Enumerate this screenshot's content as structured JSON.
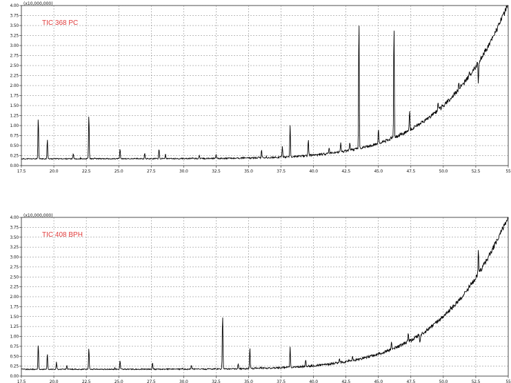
{
  "chart_data": [
    {
      "type": "line",
      "label": "TIC 368 PC",
      "multiplier": "(x10,000,000)",
      "xlim": [
        17.5,
        55.0
      ],
      "ylim": [
        0,
        4.0
      ],
      "x_ticks": [
        "17.5",
        "20.0",
        "22.5",
        "25.0",
        "27.5",
        "30.0",
        "32.5",
        "35.0",
        "37.5",
        "40.0",
        "42.5",
        "45.0",
        "47.5",
        "50.0",
        "52.5",
        "55"
      ],
      "y_ticks": [
        "0.00",
        "0.25",
        "0.50",
        "0.75",
        "1.00",
        "1.25",
        "1.50",
        "1.75",
        "2.00",
        "2.25",
        "2.50",
        "2.75",
        "3.00",
        "3.25",
        "3.50",
        "3.75",
        "4.00"
      ],
      "grid": true,
      "peaks": [
        {
          "x": 18.8,
          "y": 1.22
        },
        {
          "x": 19.5,
          "y": 0.68
        },
        {
          "x": 21.5,
          "y": 0.3
        },
        {
          "x": 22.7,
          "y": 1.32
        },
        {
          "x": 25.1,
          "y": 0.42
        },
        {
          "x": 27.0,
          "y": 0.32
        },
        {
          "x": 28.1,
          "y": 0.42
        },
        {
          "x": 28.6,
          "y": 0.28
        },
        {
          "x": 31.2,
          "y": 0.25
        },
        {
          "x": 32.5,
          "y": 0.27
        },
        {
          "x": 36.0,
          "y": 0.4
        },
        {
          "x": 37.6,
          "y": 0.5
        },
        {
          "x": 38.2,
          "y": 1.02
        },
        {
          "x": 39.6,
          "y": 0.68
        },
        {
          "x": 41.2,
          "y": 0.45
        },
        {
          "x": 42.1,
          "y": 0.55
        },
        {
          "x": 42.8,
          "y": 0.6
        },
        {
          "x": 43.5,
          "y": 3.73
        },
        {
          "x": 45.0,
          "y": 0.9
        },
        {
          "x": 46.2,
          "y": 3.55
        },
        {
          "x": 47.4,
          "y": 1.42
        },
        {
          "x": 49.6,
          "y": 1.6
        },
        {
          "x": 51.2,
          "y": 2.1
        },
        {
          "x": 52.7,
          "y": 2.05
        }
      ]
    },
    {
      "type": "line",
      "label": "TIC 408 BPH",
      "multiplier": "(x10,000,000)",
      "xlim": [
        17.5,
        55.0
      ],
      "ylim": [
        0,
        4.0
      ],
      "x_ticks": [
        "17.5",
        "20.0",
        "22.5",
        "25.0",
        "27.5",
        "30.0",
        "32.5",
        "35.0",
        "37.5",
        "40.0",
        "42.5",
        "45.0",
        "47.5",
        "50.0",
        "52.5",
        "55"
      ],
      "y_ticks": [
        "0.00",
        "0.25",
        "0.50",
        "0.75",
        "1.00",
        "1.25",
        "1.50",
        "1.75",
        "2.00",
        "2.25",
        "2.50",
        "2.75",
        "3.00",
        "3.25",
        "3.50",
        "3.75",
        "4.00"
      ],
      "grid": true,
      "peaks": [
        {
          "x": 18.8,
          "y": 0.82
        },
        {
          "x": 19.5,
          "y": 0.58
        },
        {
          "x": 20.2,
          "y": 0.35
        },
        {
          "x": 21.0,
          "y": 0.28
        },
        {
          "x": 22.7,
          "y": 0.72
        },
        {
          "x": 25.1,
          "y": 0.4
        },
        {
          "x": 27.6,
          "y": 0.34
        },
        {
          "x": 30.6,
          "y": 0.28
        },
        {
          "x": 33.0,
          "y": 1.58
        },
        {
          "x": 34.2,
          "y": 0.3
        },
        {
          "x": 35.1,
          "y": 0.72
        },
        {
          "x": 38.2,
          "y": 0.72
        },
        {
          "x": 39.4,
          "y": 0.42
        },
        {
          "x": 42.0,
          "y": 0.45
        },
        {
          "x": 43.0,
          "y": 0.48
        },
        {
          "x": 46.0,
          "y": 0.88
        },
        {
          "x": 47.3,
          "y": 1.06
        },
        {
          "x": 48.2,
          "y": 0.82
        },
        {
          "x": 52.7,
          "y": 3.2
        }
      ]
    }
  ]
}
